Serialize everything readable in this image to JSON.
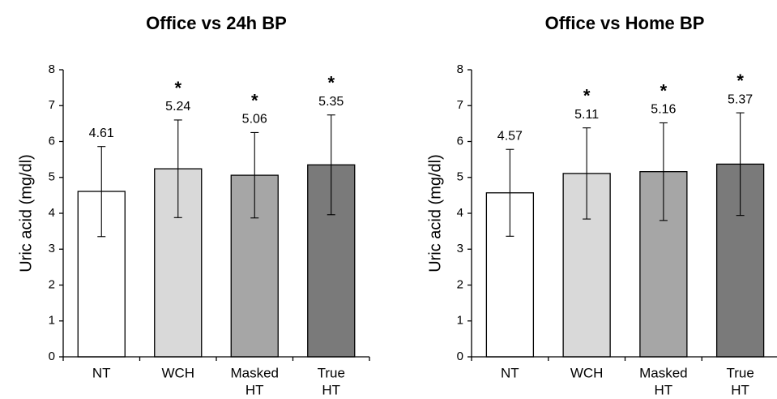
{
  "chart_data": [
    {
      "type": "bar",
      "title": "Office vs 24h BP",
      "ylabel": "Uric acid (mg/dl)",
      "xlabel": "",
      "ylim": [
        0,
        8
      ],
      "yticks": [
        0,
        1,
        2,
        3,
        4,
        5,
        6,
        7,
        8
      ],
      "grid": false,
      "categories": [
        [
          "NT"
        ],
        [
          "WCH"
        ],
        [
          "Masked",
          "HT"
        ],
        [
          "True",
          "HT"
        ]
      ],
      "values": [
        4.61,
        5.24,
        5.06,
        5.35
      ],
      "value_labels": [
        "4.61",
        "5.24",
        "5.06",
        "5.35"
      ],
      "error_low": [
        3.35,
        3.88,
        3.87,
        3.96
      ],
      "error_high": [
        5.86,
        6.6,
        6.25,
        6.74
      ],
      "significance": [
        "",
        "*",
        "*",
        "*"
      ],
      "colors": [
        "#ffffff",
        "#d9d9d9",
        "#a6a6a6",
        "#7a7a7a"
      ]
    },
    {
      "type": "bar",
      "title": "Office vs Home BP",
      "ylabel": "Uric acid (mg/dl)",
      "xlabel": "",
      "ylim": [
        0,
        8
      ],
      "yticks": [
        0,
        1,
        2,
        3,
        4,
        5,
        6,
        7,
        8
      ],
      "grid": false,
      "categories": [
        [
          "NT"
        ],
        [
          "WCH"
        ],
        [
          "Masked",
          "HT"
        ],
        [
          "True",
          "HT"
        ]
      ],
      "values": [
        4.57,
        5.11,
        5.16,
        5.37
      ],
      "value_labels": [
        "4.57",
        "5.11",
        "5.16",
        "5.37"
      ],
      "error_low": [
        3.36,
        3.84,
        3.8,
        3.94
      ],
      "error_high": [
        5.78,
        6.38,
        6.52,
        6.8
      ],
      "significance": [
        "",
        "*",
        "*",
        "*"
      ],
      "colors": [
        "#ffffff",
        "#d9d9d9",
        "#a6a6a6",
        "#7a7a7a"
      ]
    }
  ]
}
